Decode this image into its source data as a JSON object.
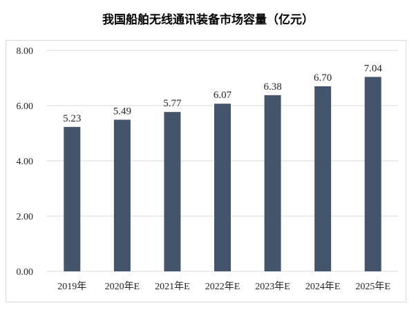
{
  "chart_data": {
    "type": "bar",
    "title": "我国船舶无线通讯装备市场容量（亿元）",
    "categories": [
      "2019年",
      "2020年E",
      "2021年E",
      "2022年E",
      "2023年E",
      "2024年E",
      "2025年E"
    ],
    "values": [
      5.23,
      5.49,
      5.77,
      6.07,
      6.38,
      6.7,
      7.04
    ],
    "value_labels": [
      "5.23",
      "5.49",
      "5.77",
      "6.07",
      "6.38",
      "6.70",
      "7.04"
    ],
    "y_ticks": [
      "0.00",
      "2.00",
      "4.00",
      "6.00",
      "8.00"
    ],
    "ylim": [
      0,
      8
    ],
    "grid": true,
    "legend": "none",
    "bar_color": "#44546a",
    "grid_color": "#d9d9d9"
  }
}
